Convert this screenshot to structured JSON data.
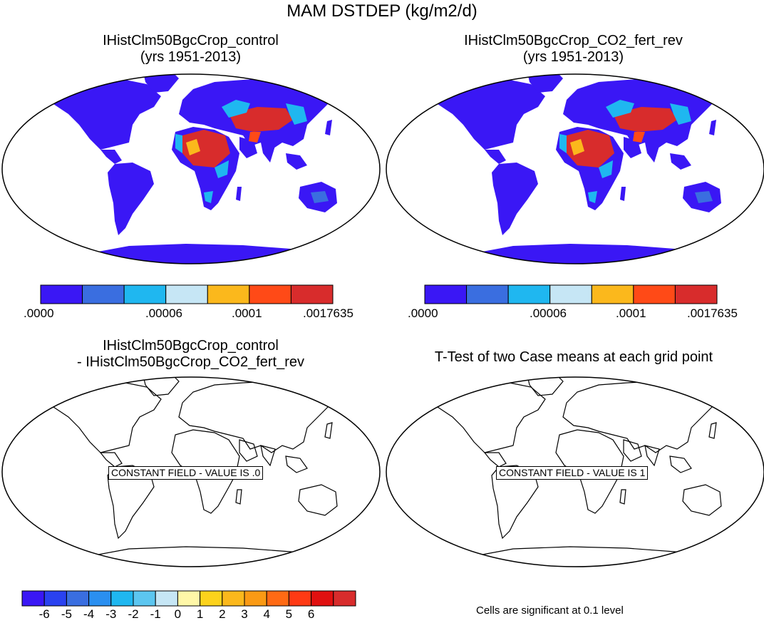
{
  "figure": {
    "title": "MAM DSTDEP (kg/m2/d)"
  },
  "panels": [
    {
      "id": "control",
      "title_line1": "IHistClm50BgcCrop_control",
      "title_line2": "(yrs 1951-2013)",
      "filled": true
    },
    {
      "id": "co2",
      "title_line1": "IHistClm50BgcCrop_CO2_fert_rev",
      "title_line2": "(yrs 1951-2013)",
      "filled": true
    },
    {
      "id": "diff",
      "title_line1": "IHistClm50BgcCrop_control",
      "title_line2": "- IHistClm50BgcCrop_CO2_fert_rev",
      "filled": false,
      "overlay_label": "CONSTANT FIELD - VALUE IS .0"
    },
    {
      "id": "ttest",
      "title_line1": "T-Test of two Case means at each grid point",
      "title_line2": "",
      "filled": false,
      "overlay_label": "CONSTANT FIELD - VALUE IS 1"
    }
  ],
  "colorbar_main": {
    "colors": [
      "#3a17f5",
      "#3a6ee0",
      "#1fb7f0",
      "#c6e6f5",
      "#fbb81c",
      "#ff4a17",
      "#d82c2c"
    ],
    "labels": [
      ".0000",
      ".00006",
      ".0001",
      ".0017635"
    ]
  },
  "colorbar_diff": {
    "colors": [
      "#3a17f5",
      "#2a42f0",
      "#3a6ee0",
      "#2a8ff0",
      "#1fb7f0",
      "#5cc6f0",
      "#c6e6f5",
      "#fff7a8",
      "#fcd21c",
      "#fbb81c",
      "#fa9a14",
      "#ff6a14",
      "#ff3a14",
      "#e01010",
      "#d82c2c"
    ],
    "labels": [
      "-6",
      "-5",
      "-4",
      "-3",
      "-2",
      "-1",
      "0",
      "1",
      "2",
      "3",
      "4",
      "5",
      "6"
    ]
  },
  "significance_note": "Cells are significant at 0.1 level"
}
